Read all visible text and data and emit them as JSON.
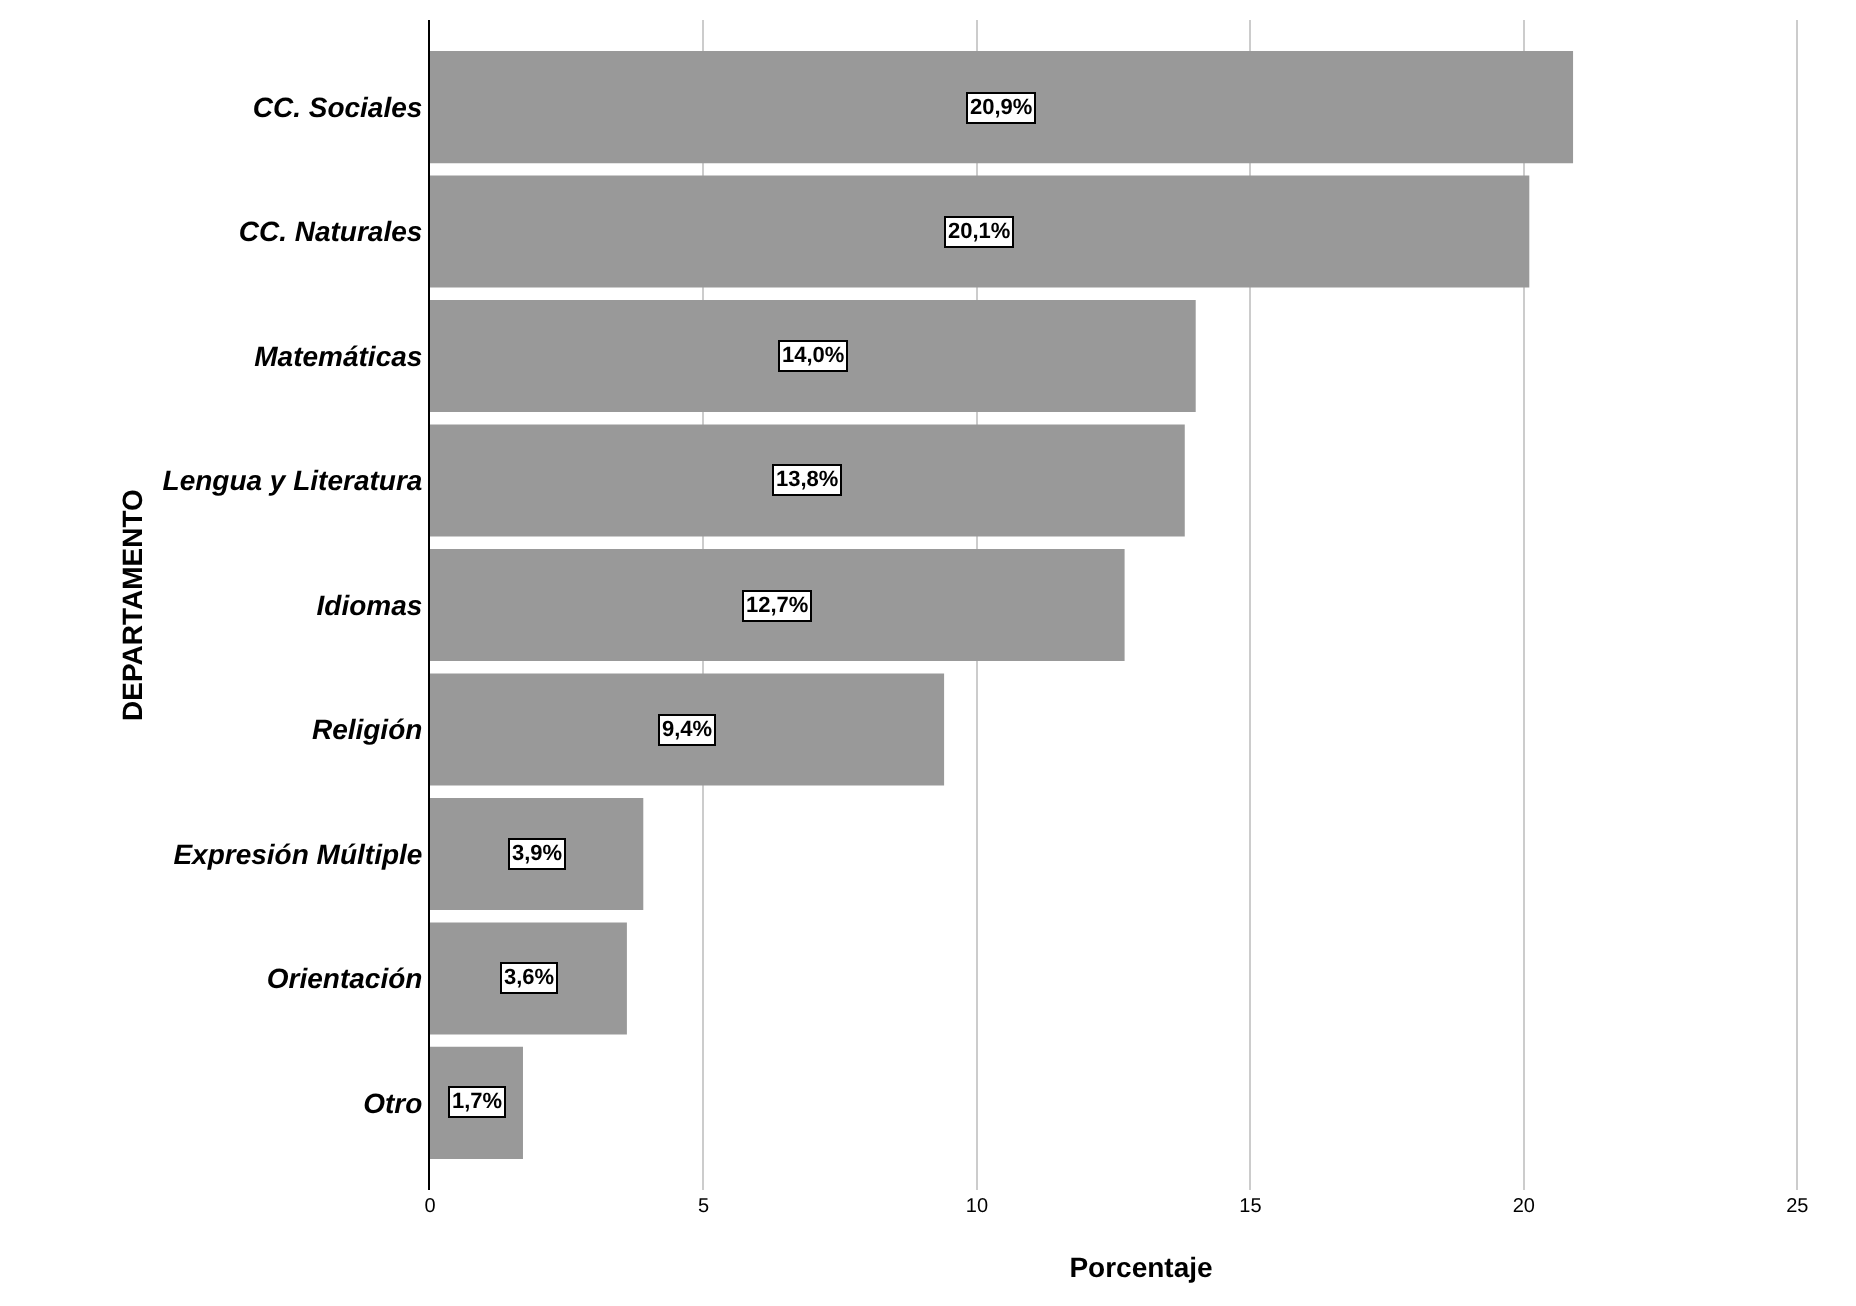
{
  "chart_data": {
    "type": "bar",
    "orientation": "horizontal",
    "xlabel": "Porcentaje",
    "ylabel": "DEPARTAMENTO",
    "categories": [
      "CC. Sociales",
      "CC. Naturales",
      "Matemáticas",
      "Lengua y Literatura",
      "Idiomas",
      "Religión",
      "Expresión Múltiple",
      "Orientación",
      "Otro"
    ],
    "values": [
      20.9,
      20.1,
      14.0,
      13.8,
      12.7,
      9.4,
      3.9,
      3.6,
      1.7
    ],
    "value_labels": [
      "20,9%",
      "20,1%",
      "14,0%",
      "13,8%",
      "12,7%",
      "9,4%",
      "3,9%",
      "3,6%",
      "1,7%"
    ],
    "color": "#999999",
    "xlim": [
      0,
      26
    ],
    "xticks": [
      0,
      5,
      10,
      15,
      20,
      25
    ],
    "grid": "x",
    "legend": false
  }
}
